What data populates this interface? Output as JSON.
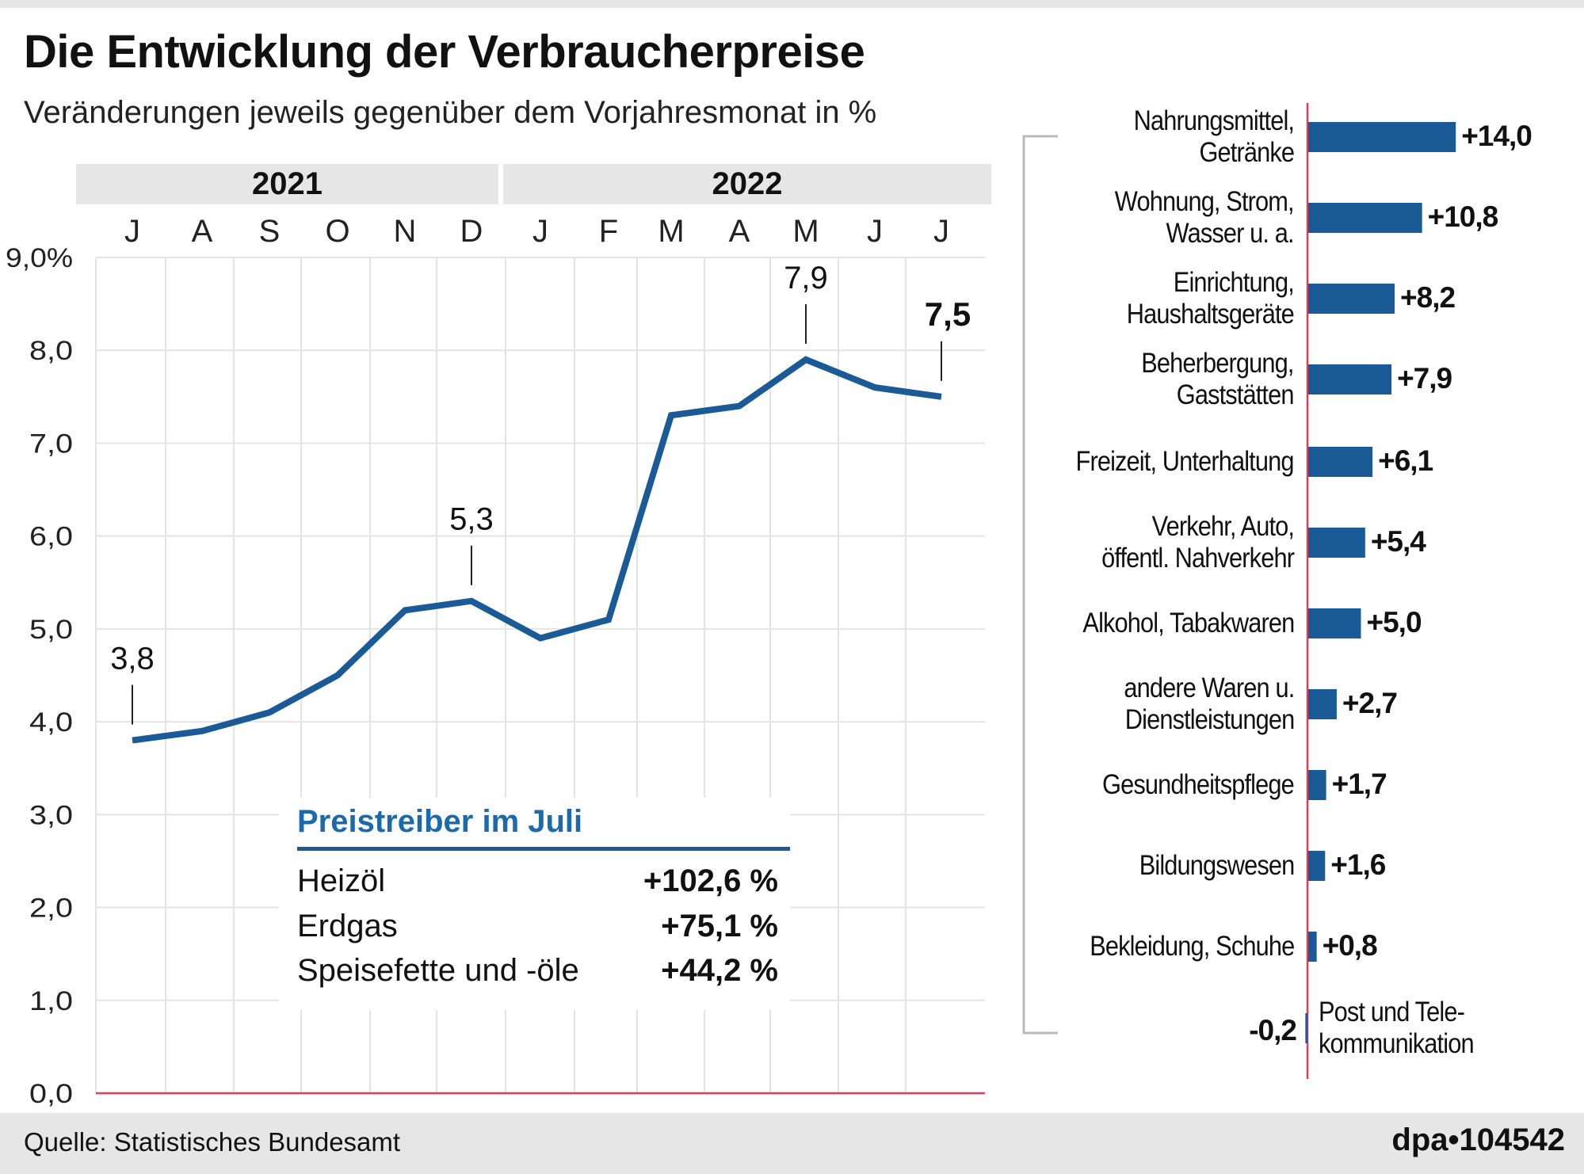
{
  "header": {
    "title": "Die Entwicklung der Verbraucherpreise",
    "subtitle": "Veränderungen jeweils gegenüber dem Vorjahresmonat in %"
  },
  "chart_data": [
    {
      "type": "line",
      "years": [
        "2021",
        "2022"
      ],
      "categories": [
        "J",
        "A",
        "S",
        "O",
        "N",
        "D",
        "J",
        "F",
        "M",
        "A",
        "M",
        "J",
        "J"
      ],
      "values": [
        3.8,
        3.9,
        4.1,
        4.5,
        5.2,
        5.3,
        4.9,
        5.1,
        7.3,
        7.4,
        7.9,
        7.6,
        7.5
      ],
      "annotations": [
        {
          "index": 0,
          "label": "3,8"
        },
        {
          "index": 5,
          "label": "5,3"
        },
        {
          "index": 10,
          "label": "7,9"
        },
        {
          "index": 12,
          "label": "7,5",
          "bold": true
        }
      ],
      "yticks": [
        "0,0",
        "1,0",
        "2,0",
        "3,0",
        "4,0",
        "5,0",
        "6,0",
        "7,0",
        "8,0",
        "9,0%"
      ],
      "ylim": [
        0,
        9
      ],
      "grid": true,
      "line_color": "#1a5a96",
      "baseline_color": "#d9415a"
    },
    {
      "type": "bar",
      "orientation": "horizontal",
      "categories": [
        [
          "Nahrungsmittel,",
          "Getränke"
        ],
        [
          "Wohnung, Strom,",
          "Wasser u. a."
        ],
        [
          "Einrichtung,",
          "Haushaltsgeräte"
        ],
        [
          "Beherbergung,",
          "Gaststätten"
        ],
        [
          "Freizeit, Unterhaltung"
        ],
        [
          "Verkehr, Auto,",
          "öffentl. Nahverkehr"
        ],
        [
          "Alkohol, Tabakwaren"
        ],
        [
          "andere Waren u.",
          "Dienstleistungen"
        ],
        [
          "Gesundheitspflege"
        ],
        [
          "Bildungswesen"
        ],
        [
          "Bekleidung, Schuhe"
        ],
        [
          "Post und Tele-",
          "kommunikation"
        ]
      ],
      "values": [
        14.0,
        10.8,
        8.2,
        7.9,
        6.1,
        5.4,
        5.0,
        2.7,
        1.7,
        1.6,
        0.8,
        -0.2
      ],
      "value_labels": [
        "+14,0",
        "+10,8",
        "+8,2",
        "+7,9",
        "+6,1",
        "+5,4",
        "+5,0",
        "+2,7",
        "+1,7",
        "+1,6",
        "+0,8",
        "-0,2"
      ],
      "bar_color": "#1a5a96"
    }
  ],
  "inset": {
    "title": "Preistreiber im Juli",
    "rows": [
      {
        "label": "Heizöl",
        "value": "+102,6 %"
      },
      {
        "label": "Erdgas",
        "value": "+75,1 %"
      },
      {
        "label": "Speisefette und -öle",
        "value": "+44,2 %"
      }
    ]
  },
  "footer": {
    "source": "Quelle: Statistisches Bundesamt",
    "credit": "dpa•104542"
  }
}
